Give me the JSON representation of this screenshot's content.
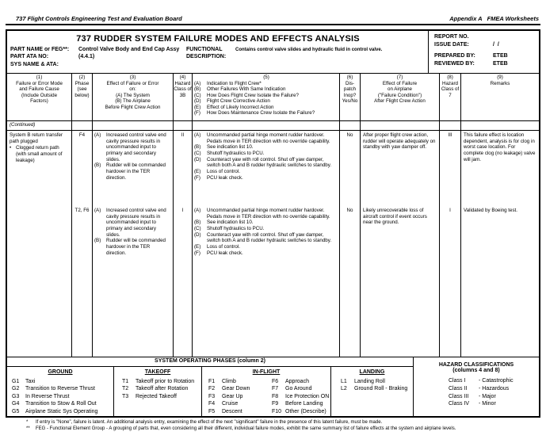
{
  "page_header": {
    "left": "737 Flight Controls Engineering Test and Evaluation Board",
    "right": "Appendix A   FMEA Worksheets"
  },
  "title_block": {
    "title": "737 RUDDER SYSTEM FAILURE MODES AND EFFECTS ANALYSIS",
    "part_name_label": "PART NAME or FEG**:",
    "part_name_value": "Control Valve Body and End Cap Assy",
    "part_ata_label": "PART ATA NO:",
    "part_ata_value": "(4.4.1)",
    "sys_name_label": "SYS NAME & ATA:",
    "functional_label": "FUNCTIONAL\nDESCRIPTION:",
    "functional_value": "Contains control valve slides and hydraulic fluid in control valve.",
    "report": {
      "report_no_label": "REPORT NO.",
      "issue_date_label": "ISSUE DATE:",
      "issue_date_value": "/  /",
      "prepared_by_label": "PREPARED BY:",
      "prepared_by_value": "ETEB",
      "reviewed_by_label": "REVIEWED BY:",
      "reviewed_by_value": "ETEB"
    }
  },
  "table_header": {
    "col1": {
      "num": "(1)",
      "text": "Failure or Error Mode\nand Failure Cause\n(Include Outside\nFactors)"
    },
    "col2": {
      "num": "(2)",
      "text": "Phase\n(see\nbelow)"
    },
    "col3": {
      "num": "(3)",
      "text": "Effect of Failure or Error\non:\n(A)  The System\n(B)  The Airplane\nBefore Flight Crew Action"
    },
    "col4": {
      "num": "(4)",
      "text": "Hazard\nClass of\n3B"
    },
    "col5": {
      "num": "(5)",
      "items": [
        {
          "t": "(A)",
          "x": "Indication to Flight Crew*"
        },
        {
          "t": "(B)",
          "x": "Other Failures With Same Indication"
        },
        {
          "t": "(C)",
          "x": "How Does Flight Crew Isolate the Failure?"
        },
        {
          "t": "(D)",
          "x": "Flight Crew Corrective Action"
        },
        {
          "t": "(E)",
          "x": "Effect of Likely Incorrect Action"
        },
        {
          "t": "(F)",
          "x": "How Does Maintenance Crew Isolate the Failure?"
        }
      ]
    },
    "col6": {
      "num": "(6)",
      "text": "Dis-\npatch\nInop?\nYes/No"
    },
    "col7": {
      "num": "(7)",
      "text": "Effect of Failure\non Airplane\n(\"Failure Condition\")\nAfter Flight Crew Action"
    },
    "col8": {
      "num": "(8)",
      "text": "Hazard\nClass of\n7"
    },
    "col9": {
      "num": "(9)",
      "text": "Remarks"
    }
  },
  "body": {
    "continued_label": "(Continued)",
    "failure_mode": "System B return transfer path plugged",
    "failure_cause_bullet": "•",
    "failure_cause": "Clogged return path (with small amount of leakage)",
    "entries": [
      {
        "phase": "F4",
        "effects": [
          {
            "t": "(A)",
            "x": "Increased control valve end cavity pressure results in uncommanded input to primary and secondary slides."
          },
          {
            "t": "(B)",
            "x": "Rudder will be commanded hardover in the TER direction."
          }
        ],
        "hazard_3b": "II",
        "indications": [
          {
            "t": "(A)",
            "x": "Uncommanded partial hinge moment rudder hardover. Pedals move in TER direction with no override capability."
          },
          {
            "t": "(B)",
            "x": "See indication list 10."
          },
          {
            "t": "(C)",
            "x": "Shutoff hydraulics to PCU."
          },
          {
            "t": "(D)",
            "x": "Counteract yaw with roll control.  Shut off yaw damper, switch both A and B rudder hydraulic switches to standby."
          },
          {
            "t": "(E)",
            "x": "Loss of control."
          },
          {
            "t": "(F)",
            "x": "PCU leak check."
          }
        ],
        "dispatch": "No",
        "effect_after": "After proper flight crew action, rudder will operate adequately on standby with yaw damper off.",
        "hazard_7": "III",
        "remarks": "This failure effect is location dependent, analysis is for clog in worst case location. For complete clog (no leakage) valve will jam."
      },
      {
        "phase": "T2, F6",
        "effects": [
          {
            "t": "(A)",
            "x": "Increased control valve end cavity pressure results in uncommanded input to primary and secondary slides."
          },
          {
            "t": "(B)",
            "x": "Rudder will be commanded hardover in the TER direction."
          }
        ],
        "hazard_3b": "I",
        "indications": [
          {
            "t": "(A)",
            "x": "Uncommanded partial hinge moment rudder hardover. Pedals move in TER direction with no override capability."
          },
          {
            "t": "(B)",
            "x": "See indication list 10."
          },
          {
            "t": "(C)",
            "x": "Shutoff hydraulics to PCU."
          },
          {
            "t": "(D)",
            "x": "Counteract yaw with roll control.  Shut off yaw damper, switch both A and B rudder hydraulic switches to standby."
          },
          {
            "t": "(E)",
            "x": "Loss of control."
          },
          {
            "t": "(F)",
            "x": "PCU leak check."
          }
        ],
        "dispatch": "No",
        "effect_after": "Likely unrecoverable loss of aircraft control if event occurs near the ground.",
        "hazard_7": "I",
        "remarks": "Validated by Boeing test."
      }
    ]
  },
  "phases_legend": {
    "title": "SYSTEM OPERATING PHASES (column 2)",
    "ground": {
      "title": "GROUND",
      "items": [
        {
          "t": "G1",
          "x": "Taxi"
        },
        {
          "t": "G2",
          "x": "Transition to Reverse Thrust"
        },
        {
          "t": "G3",
          "x": "In Reverse Thrust"
        },
        {
          "t": "G4",
          "x": "Transition to Stow & Roll Out"
        },
        {
          "t": "G5",
          "x": "Airplane Static Sys Operating"
        }
      ]
    },
    "takeoff": {
      "title": "TAKEOFF",
      "items": [
        {
          "t": "T1",
          "x": "Takeoff prior to Rotation"
        },
        {
          "t": "T2",
          "x": "Takeoff after Rotation"
        },
        {
          "t": "T3",
          "x": "Rejected Takeoff"
        }
      ]
    },
    "inflight": {
      "title": "IN-FLIGHT",
      "items_left": [
        {
          "t": "F1",
          "x": "Climb"
        },
        {
          "t": "F2",
          "x": "Gear Down"
        },
        {
          "t": "F3",
          "x": "Gear Up"
        },
        {
          "t": "F4",
          "x": "Cruise"
        },
        {
          "t": "F5",
          "x": "Descent"
        }
      ],
      "items_right": [
        {
          "t": "F6",
          "x": "Approach"
        },
        {
          "t": "F7",
          "x": "Go Around"
        },
        {
          "t": "F8",
          "x": "Ice Protection ON"
        },
        {
          "t": "F9",
          "x": "Before Landing"
        },
        {
          "t": "F10",
          "x": "Other (Describe)"
        }
      ]
    },
    "landing": {
      "title": "LANDING",
      "items": [
        {
          "t": "L1",
          "x": "Landing Roll"
        },
        {
          "t": "L2",
          "x": "Ground Roll - Braking"
        }
      ]
    }
  },
  "hazard_legend": {
    "title": "HAZARD CLASSIFICATIONS",
    "subtitle": "(columns 4 and 8)",
    "items": [
      {
        "t": "Class I",
        "x": "-  Catastrophic"
      },
      {
        "t": "Class II",
        "x": "-  Hazardous"
      },
      {
        "t": "Class III",
        "x": "-  Major"
      },
      {
        "t": "Class IV",
        "x": "-  Minor"
      }
    ]
  },
  "footnotes": [
    {
      "t": "*",
      "x": "If entry is \"None\", failure is latent.  An additional analysis entry, examining the effect of the next \"significant\" failure in the presence of this latent failure, must be made."
    },
    {
      "t": "**",
      "x": "FEG - Functional Element Group - A grouping of parts that, even considering all their different, individual failure modes, exhibit the same summary list of failure effects at the system and airplane levels."
    }
  ]
}
